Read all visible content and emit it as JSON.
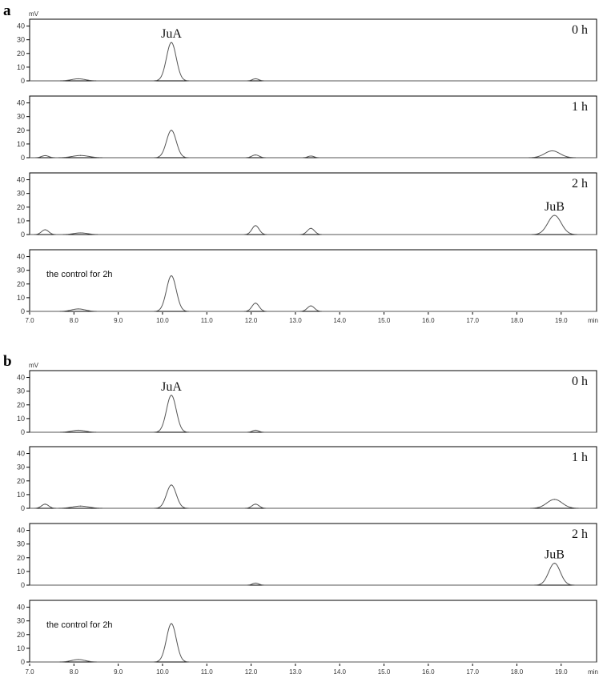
{
  "chart_data": [
    {
      "panel": "a",
      "type": "line",
      "unit": "mV",
      "x_unit": "min",
      "xlim": [
        7.0,
        19.8
      ],
      "ylim": [
        0,
        45
      ],
      "x_ticks": [
        "7.0",
        "8.0",
        "9.0",
        "10.0",
        "11.0",
        "12.0",
        "13.0",
        "14.0",
        "15.0",
        "16.0",
        "17.0",
        "18.0",
        "19.0"
      ],
      "y_ticks": [
        "0",
        "10",
        "20",
        "30",
        "40"
      ],
      "subplots": [
        {
          "label": "0 h",
          "peak_label": "JuA",
          "peak_label_x": 10.2,
          "peaks": [
            {
              "rt": 8.1,
              "height": 1.5,
              "width": 0.15
            },
            {
              "rt": 10.2,
              "height": 28,
              "width": 0.11
            },
            {
              "rt": 12.1,
              "height": 1.5,
              "width": 0.07
            }
          ]
        },
        {
          "label": "1 h",
          "peaks": [
            {
              "rt": 7.35,
              "height": 1.5,
              "width": 0.08
            },
            {
              "rt": 8.15,
              "height": 1.6,
              "width": 0.18
            },
            {
              "rt": 10.2,
              "height": 20,
              "width": 0.11
            },
            {
              "rt": 12.1,
              "height": 2,
              "width": 0.08
            },
            {
              "rt": 13.35,
              "height": 1.2,
              "width": 0.07
            },
            {
              "rt": 18.8,
              "height": 5,
              "width": 0.17
            }
          ]
        },
        {
          "label": "2 h",
          "peak_label": "JuB",
          "peak_label_x": 18.85,
          "peaks": [
            {
              "rt": 7.35,
              "height": 3.5,
              "width": 0.08
            },
            {
              "rt": 8.15,
              "height": 1.2,
              "width": 0.15
            },
            {
              "rt": 12.1,
              "height": 6.5,
              "width": 0.08
            },
            {
              "rt": 13.35,
              "height": 4.5,
              "width": 0.08
            },
            {
              "rt": 18.85,
              "height": 14,
              "width": 0.15
            }
          ]
        },
        {
          "label": "the control for 2h",
          "peaks": [
            {
              "rt": 8.1,
              "height": 1.8,
              "width": 0.15
            },
            {
              "rt": 10.2,
              "height": 26,
              "width": 0.11
            },
            {
              "rt": 12.1,
              "height": 6,
              "width": 0.08
            },
            {
              "rt": 13.35,
              "height": 4,
              "width": 0.08
            }
          ]
        }
      ]
    },
    {
      "panel": "b",
      "type": "line",
      "unit": "mV",
      "x_unit": "min",
      "xlim": [
        7.0,
        19.8
      ],
      "ylim": [
        0,
        45
      ],
      "x_ticks": [
        "7.0",
        "8.0",
        "9.0",
        "10.0",
        "11.0",
        "12.0",
        "13.0",
        "14.0",
        "15.0",
        "16.0",
        "17.0",
        "18.0",
        "19.0"
      ],
      "y_ticks": [
        "0",
        "10",
        "20",
        "30",
        "40"
      ],
      "subplots": [
        {
          "label": "0 h",
          "peak_label": "JuA",
          "peak_label_x": 10.2,
          "peaks": [
            {
              "rt": 8.1,
              "height": 1.5,
              "width": 0.15
            },
            {
              "rt": 10.2,
              "height": 27,
              "width": 0.11
            },
            {
              "rt": 12.1,
              "height": 1.5,
              "width": 0.07
            }
          ]
        },
        {
          "label": "1 h",
          "peaks": [
            {
              "rt": 7.35,
              "height": 3,
              "width": 0.08
            },
            {
              "rt": 8.15,
              "height": 1.6,
              "width": 0.18
            },
            {
              "rt": 10.2,
              "height": 17,
              "width": 0.11
            },
            {
              "rt": 12.1,
              "height": 3,
              "width": 0.08
            },
            {
              "rt": 18.85,
              "height": 6.5,
              "width": 0.17
            }
          ]
        },
        {
          "label": "2 h",
          "peak_label": "JuB",
          "peak_label_x": 18.85,
          "peaks": [
            {
              "rt": 12.1,
              "height": 1.5,
              "width": 0.07
            },
            {
              "rt": 18.85,
              "height": 16,
              "width": 0.13
            }
          ]
        },
        {
          "label": "the control for 2h",
          "peaks": [
            {
              "rt": 8.1,
              "height": 1.8,
              "width": 0.15
            },
            {
              "rt": 10.2,
              "height": 28,
              "width": 0.11
            }
          ]
        }
      ]
    }
  ]
}
